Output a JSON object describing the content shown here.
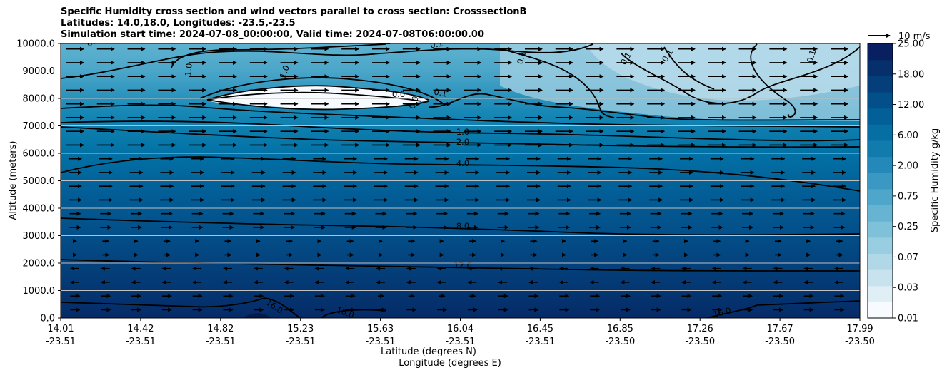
{
  "chart_data": {
    "type": "heatmap",
    "title_lines": [
      "Specific Humidity cross section and wind vectors parallel to cross section: CrosssectionB",
      "Latitudes: 14.0,18.0, Longitudes: -23.5,-23.5",
      "Simulation start time: 2024-07-08_00:00:00, Valid time: 2024-07-08T06:00:00.00"
    ],
    "ylabel": "Altitude (meters)",
    "xlabel_lines": [
      "Latitude (degrees N)",
      "Longitude (degrees E)"
    ],
    "ylim": [
      0,
      10000
    ],
    "y_ticks": [
      "0.0",
      "1000.0",
      "2000.0",
      "3000.0",
      "4000.0",
      "5000.0",
      "6000.0",
      "7000.0",
      "8000.0",
      "9000.0",
      "10000.0"
    ],
    "x_ticks": [
      {
        "lat": "14.01",
        "lon": "-23.51"
      },
      {
        "lat": "14.42",
        "lon": "-23.51"
      },
      {
        "lat": "14.82",
        "lon": "-23.51"
      },
      {
        "lat": "15.23",
        "lon": "-23.51"
      },
      {
        "lat": "15.63",
        "lon": "-23.51"
      },
      {
        "lat": "16.04",
        "lon": "-23.51"
      },
      {
        "lat": "16.45",
        "lon": "-23.51"
      },
      {
        "lat": "16.85",
        "lon": "-23.50"
      },
      {
        "lat": "17.26",
        "lon": "-23.50"
      },
      {
        "lat": "17.67",
        "lon": "-23.50"
      },
      {
        "lat": "17.99",
        "lon": "-23.50"
      }
    ],
    "colorbar": {
      "label": "Specific Humidity g/kg",
      "ticks": [
        "0.01",
        "0.03",
        "0.07",
        "0.25",
        "0.75",
        "2.00",
        "6.00",
        "12.00",
        "18.00",
        "25.00"
      ],
      "colors": [
        "#f7fbff",
        "#e0eef5",
        "#c9e3ee",
        "#b1d8e7",
        "#99cde1",
        "#80c1da",
        "#67b4d2",
        "#4ea7ca",
        "#3a98c2",
        "#2489b8",
        "#127bad",
        "#056fa3",
        "#035f97",
        "#034f89",
        "#043f7b",
        "#062f6c",
        "#082060"
      ]
    },
    "contour_labels": [
      "0.1",
      "0.1",
      "0.1",
      "0.1",
      "0.1",
      "0.1",
      "0.1",
      "1.0",
      "1.0",
      "0.0",
      "0.0",
      "0.1",
      "1.0",
      "2.0",
      "4.0",
      "8.0",
      "12.0",
      "16.0",
      "16.0",
      "16.0"
    ],
    "quiver_key": "10 m/s"
  }
}
